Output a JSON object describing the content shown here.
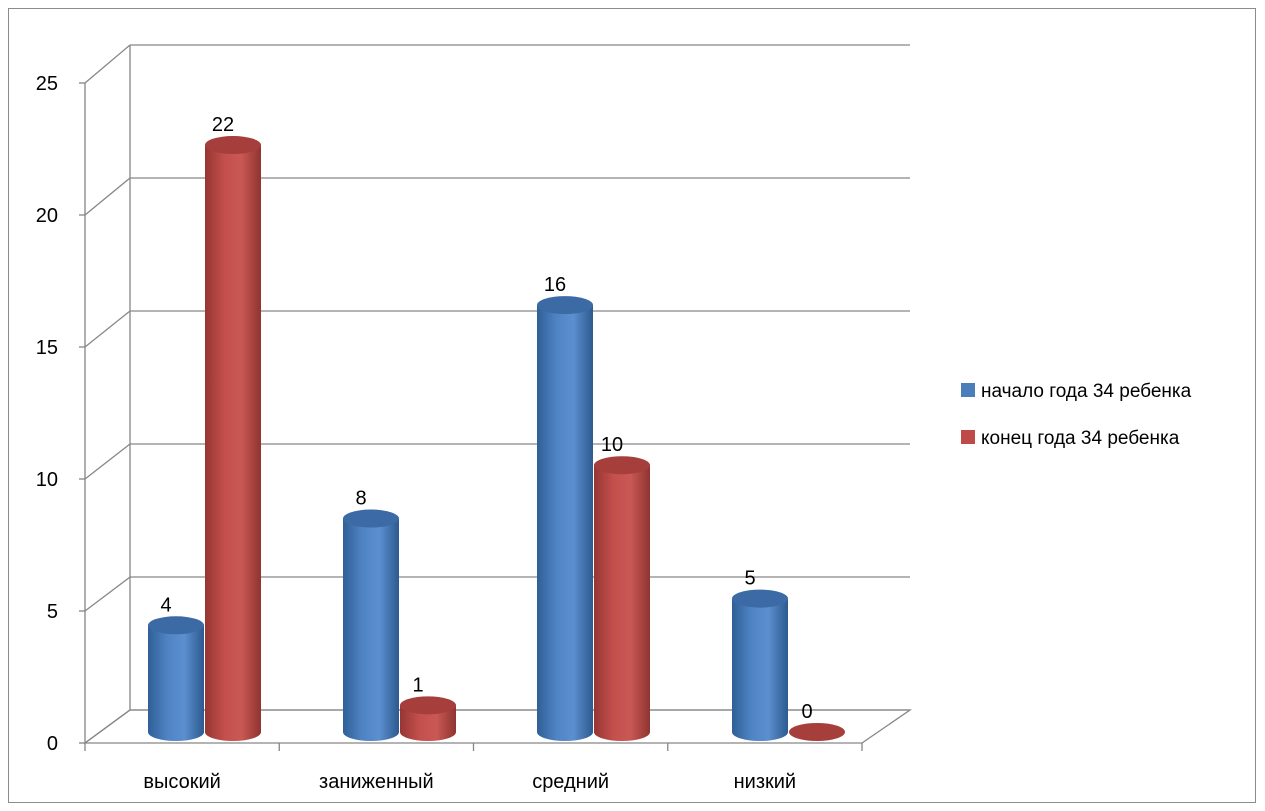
{
  "chart_data": {
    "type": "bar",
    "style": "3d-cylinder",
    "categories": [
      "высокий",
      "заниженный",
      "средний",
      "низкий"
    ],
    "series": [
      {
        "name": "начало года 34 ребенка",
        "values": [
          4,
          8,
          16,
          5
        ],
        "color": "#4a7ebb"
      },
      {
        "name": "конец года 34 ребенка",
        "values": [
          22,
          1,
          10,
          0
        ],
        "color": "#be4b48"
      }
    ],
    "yticks": [
      "0",
      "5",
      "10",
      "15",
      "20",
      "25"
    ],
    "ylim": [
      0,
      25
    ],
    "grid": true,
    "legend": "right",
    "data_labels": true
  }
}
